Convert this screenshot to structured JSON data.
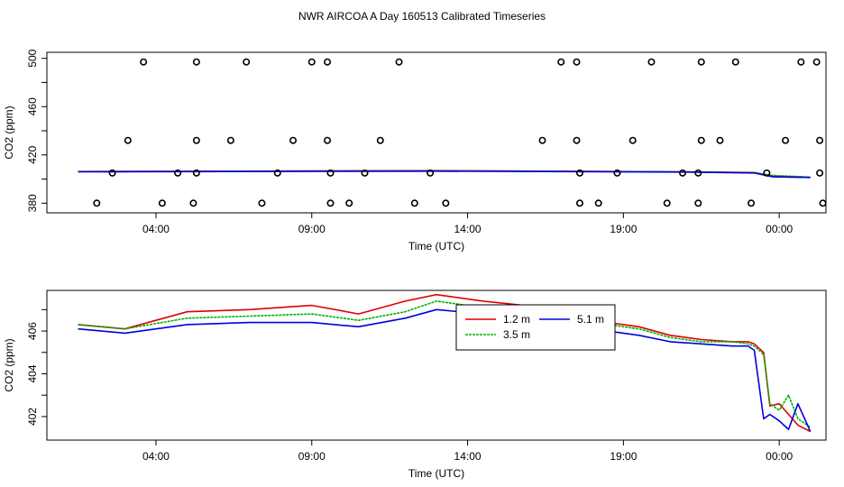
{
  "title": "NWR AIRCOA A  Day 160513  Calibrated Timeseries",
  "colors": {
    "red": "#e00000",
    "green": "#00b000",
    "blue": "#0000dd",
    "purple": "#c000c0",
    "axis": "#000000"
  },
  "chart_data": [
    {
      "type": "scatter",
      "xlabel": "Time (UTC)",
      "ylabel": "CO2 (ppm)",
      "xlim": [
        -0.5,
        24.5
      ],
      "ylim": [
        372,
        505
      ],
      "xticks": [
        3,
        8,
        13,
        18,
        23
      ],
      "xtick_labels": [
        "04:00",
        "09:00",
        "14:00",
        "19:00",
        "00:00"
      ],
      "yticks": [
        380,
        420,
        460,
        500
      ],
      "ytick_labels": [
        "380",
        "420",
        "460",
        "500"
      ],
      "ytick_minor": [
        400,
        440,
        480
      ],
      "points": [
        [
          1.1,
          380
        ],
        [
          1.6,
          405
        ],
        [
          2.1,
          432
        ],
        [
          2.6,
          497
        ],
        [
          3.2,
          380
        ],
        [
          3.7,
          405
        ],
        [
          4.2,
          380
        ],
        [
          4.3,
          405
        ],
        [
          4.3,
          432
        ],
        [
          4.3,
          497
        ],
        [
          5.4,
          432
        ],
        [
          5.9,
          497
        ],
        [
          6.4,
          380
        ],
        [
          6.9,
          405
        ],
        [
          7.4,
          432
        ],
        [
          8.0,
          497
        ],
        [
          8.5,
          432
        ],
        [
          8.5,
          497
        ],
        [
          8.6,
          405
        ],
        [
          8.6,
          380
        ],
        [
          9.2,
          380
        ],
        [
          9.7,
          405
        ],
        [
          10.2,
          432
        ],
        [
          10.8,
          497
        ],
        [
          11.3,
          380
        ],
        [
          11.8,
          405
        ],
        [
          12.3,
          380
        ],
        [
          15.4,
          432
        ],
        [
          16.0,
          497
        ],
        [
          16.5,
          432
        ],
        [
          16.5,
          497
        ],
        [
          16.6,
          405
        ],
        [
          16.6,
          380
        ],
        [
          17.2,
          380
        ],
        [
          17.8,
          405
        ],
        [
          18.3,
          432
        ],
        [
          18.9,
          497
        ],
        [
          19.4,
          380
        ],
        [
          19.9,
          405
        ],
        [
          20.4,
          380
        ],
        [
          20.4,
          405
        ],
        [
          20.5,
          432
        ],
        [
          20.5,
          497
        ],
        [
          21.1,
          432
        ],
        [
          21.6,
          497
        ],
        [
          22.1,
          380
        ],
        [
          22.6,
          405
        ],
        [
          23.2,
          432
        ],
        [
          23.7,
          497
        ],
        [
          24.2,
          497
        ],
        [
          24.3,
          432
        ],
        [
          24.3,
          405
        ],
        [
          24.4,
          380
        ]
      ],
      "series": [
        {
          "name": "1.2 m",
          "color": "red",
          "x": [
            0.5,
            12.0,
            20.0,
            22.2,
            22.8,
            24.0
          ],
          "y": [
            406.2,
            407.0,
            406.0,
            405.4,
            402.5,
            401.5
          ]
        },
        {
          "name": "3.5 m",
          "color": "green",
          "x": [
            0.5,
            12.0,
            20.0,
            22.2,
            22.8,
            24.0
          ],
          "y": [
            406.1,
            406.8,
            405.9,
            405.2,
            403.0,
            401.6
          ]
        },
        {
          "name": "5.1 m",
          "color": "blue",
          "x": [
            0.5,
            12.0,
            20.0,
            22.2,
            22.8,
            24.0
          ],
          "y": [
            406.0,
            406.5,
            405.8,
            405.0,
            401.8,
            401.3
          ]
        }
      ]
    },
    {
      "type": "line",
      "xlabel": "Time (UTC)",
      "ylabel": "CO2 (ppm)",
      "xlim": [
        -0.5,
        24.5
      ],
      "ylim": [
        400.9,
        407.9
      ],
      "xticks": [
        3,
        8,
        13,
        18,
        23
      ],
      "xtick_labels": [
        "04:00",
        "09:00",
        "14:00",
        "19:00",
        "00:00"
      ],
      "yticks": [
        402,
        404,
        406
      ],
      "ytick_labels": [
        "402",
        "404",
        "406"
      ],
      "ytick_minor": [
        403,
        405,
        407
      ],
      "legend": {
        "position": "top-center",
        "entries": [
          "1.2 m",
          "3.5 m",
          "5.1 m"
        ]
      },
      "series": [
        {
          "name": "1.2 m",
          "color": "red",
          "x": [
            0.5,
            2.0,
            4.0,
            6.0,
            8.0,
            9.5,
            11.0,
            12.0,
            13.5,
            15.5,
            16.5,
            17.5,
            18.5,
            19.5,
            20.5,
            21.5,
            22.0,
            22.2,
            22.5,
            22.7,
            23.0,
            23.3,
            23.6,
            24.0
          ],
          "y": [
            406.3,
            406.1,
            406.9,
            407.0,
            407.2,
            406.8,
            407.4,
            407.7,
            407.4,
            407.1,
            406.3,
            406.4,
            406.2,
            405.8,
            405.6,
            405.5,
            405.5,
            405.4,
            405.0,
            402.5,
            402.6,
            402.1,
            401.6,
            401.3
          ]
        },
        {
          "name": "3.5 m",
          "color": "green",
          "x": [
            0.5,
            2.0,
            4.0,
            6.0,
            8.0,
            9.5,
            11.0,
            12.0,
            13.5,
            15.5,
            16.5,
            17.5,
            18.5,
            19.5,
            20.5,
            21.5,
            22.0,
            22.2,
            22.5,
            22.7,
            23.0,
            23.3,
            23.6,
            24.0
          ],
          "y": [
            406.3,
            406.1,
            406.6,
            406.7,
            406.8,
            406.5,
            406.9,
            407.4,
            407.1,
            406.9,
            406.2,
            406.3,
            406.1,
            405.7,
            405.5,
            405.5,
            405.4,
            405.3,
            404.9,
            402.6,
            402.3,
            403.0,
            401.9,
            401.5
          ]
        },
        {
          "name": "5.1 m",
          "color": "blue",
          "x": [
            0.5,
            2.0,
            4.0,
            6.0,
            8.0,
            9.5,
            11.0,
            12.0,
            13.5,
            15.5,
            16.5,
            17.5,
            18.5,
            19.5,
            20.5,
            21.5,
            22.0,
            22.2,
            22.5,
            22.7,
            23.0,
            23.3,
            23.6,
            24.0
          ],
          "y": [
            406.1,
            405.9,
            406.3,
            406.4,
            406.4,
            406.2,
            406.6,
            407.0,
            406.8,
            406.7,
            405.9,
            406.0,
            405.8,
            405.5,
            405.4,
            405.3,
            405.3,
            405.1,
            401.9,
            402.1,
            401.8,
            401.4,
            402.6,
            401.3
          ]
        }
      ]
    }
  ]
}
